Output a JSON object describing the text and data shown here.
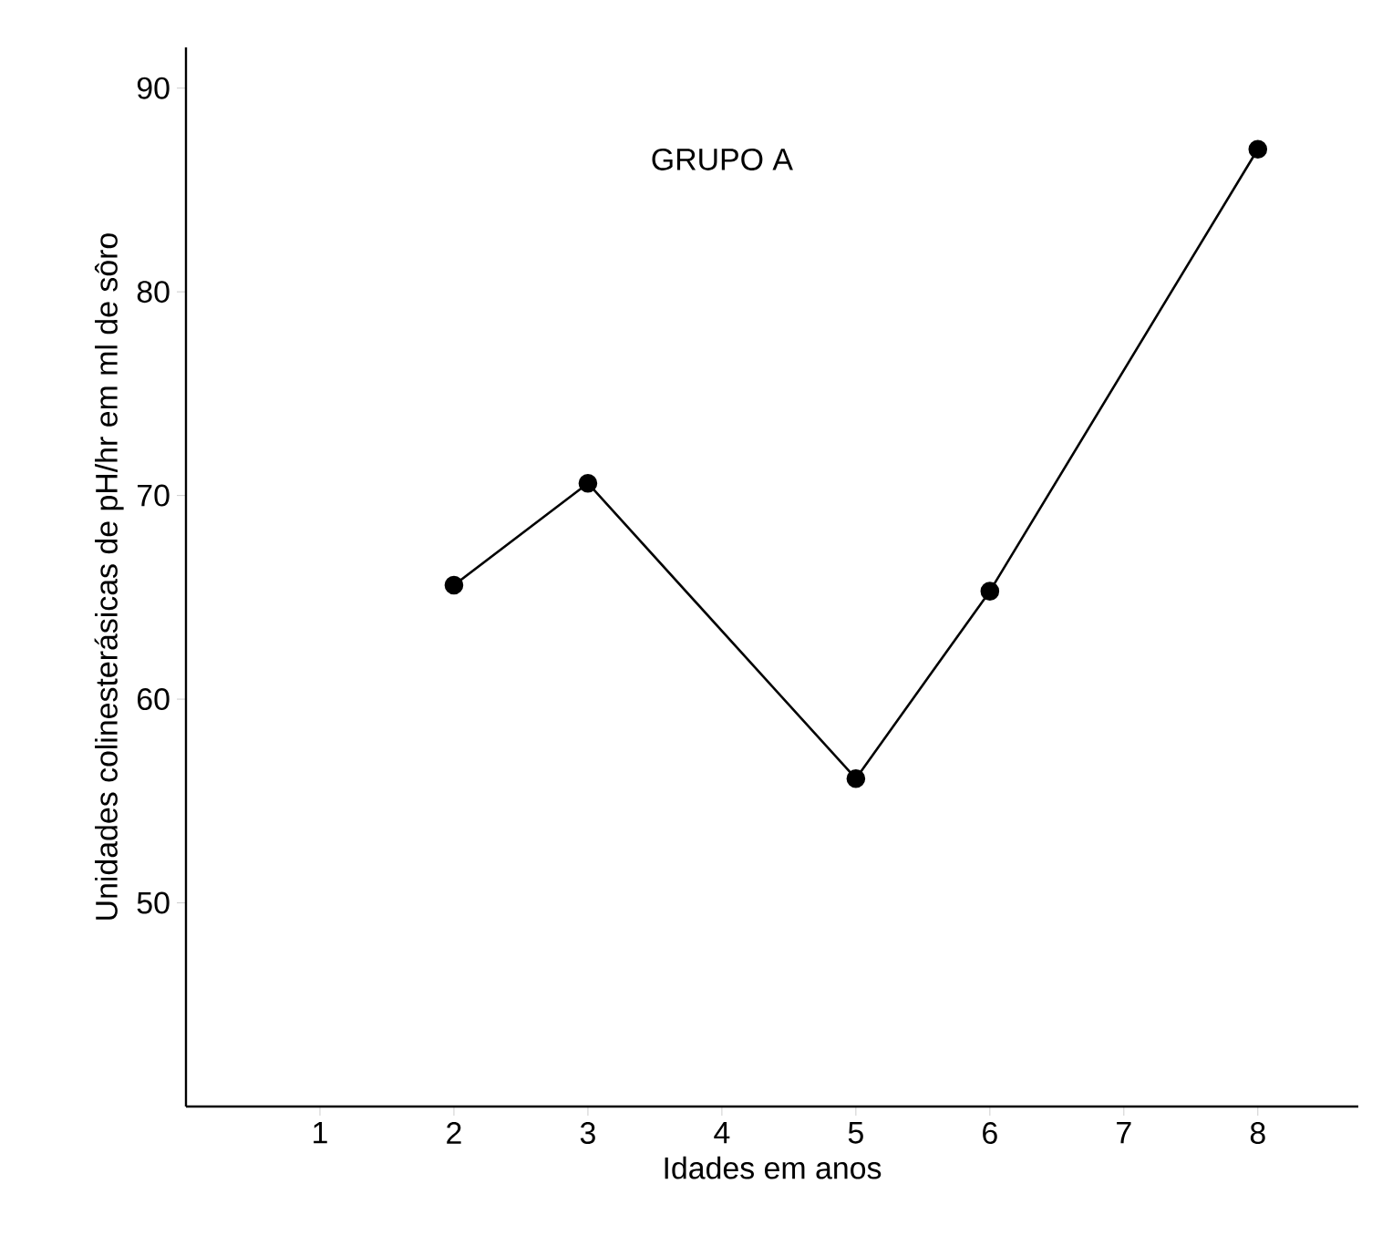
{
  "chart_data": {
    "type": "line",
    "title": "GRUPO A",
    "xlabel": "Idades em anos",
    "ylabel": "Unidades colinesterásicas de pH/hr em ml de sôro",
    "x": [
      2,
      3,
      5,
      6,
      8
    ],
    "series": [
      {
        "color": "#000000",
        "values": [
          65.6,
          70.6,
          56.1,
          65.3,
          87.0
        ]
      }
    ],
    "xlim": [
      0,
      8.75
    ],
    "xticks": [
      1,
      2,
      3,
      4,
      5,
      6,
      7,
      8
    ],
    "ylim": [
      40,
      92
    ],
    "yticks": [
      50,
      60,
      70,
      80,
      90
    ],
    "marker": "circle",
    "line_style": "solid"
  }
}
